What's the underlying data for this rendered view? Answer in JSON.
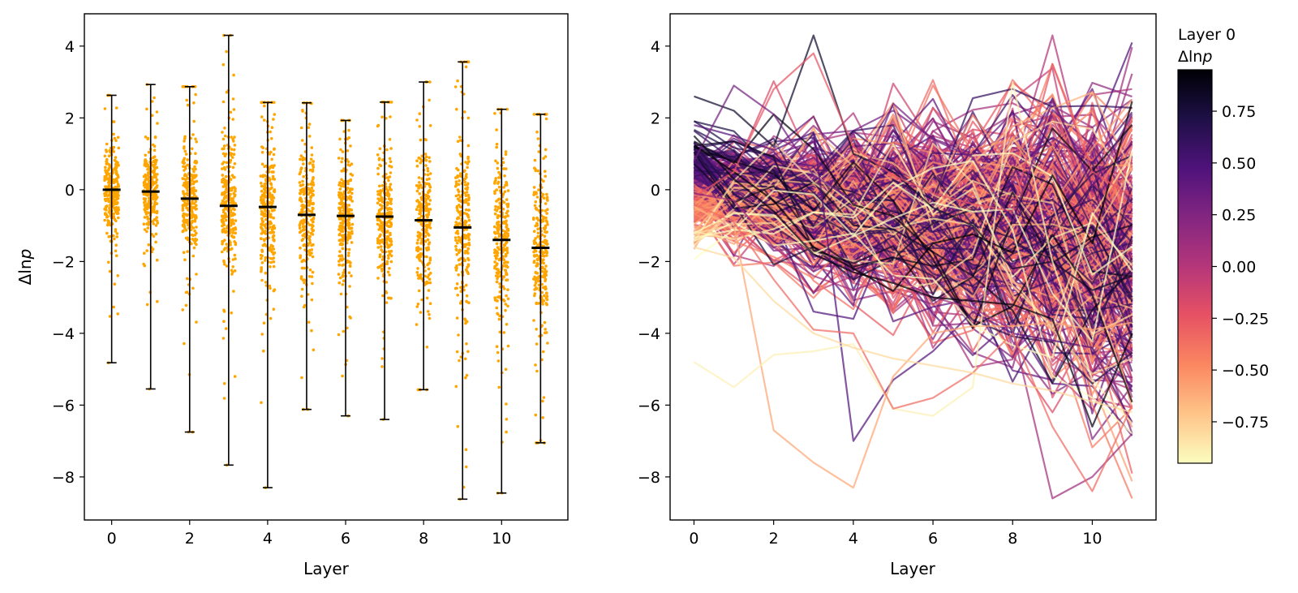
{
  "chart_data": [
    {
      "type": "scatter",
      "panel": "left",
      "description_kind": "jittered strip plot with mean markers and min-max error bars",
      "xlabel": "Layer",
      "ylabel": "Δln",
      "ylabel_italic_suffix": "p",
      "xticks": [
        0,
        2,
        4,
        6,
        8,
        10
      ],
      "yticks": [
        4,
        2,
        0,
        -2,
        -4,
        -6,
        -8
      ],
      "xlim": [
        -0.7,
        11.7
      ],
      "ylim": [
        -9.2,
        4.9
      ],
      "grid": false,
      "point_color": "#ffa500",
      "bar_color": "#000000",
      "layers": [
        0,
        1,
        2,
        3,
        4,
        5,
        6,
        7,
        8,
        9,
        10,
        11
      ],
      "means": [
        0.0,
        -0.05,
        -0.25,
        -0.45,
        -0.48,
        -0.7,
        -0.73,
        -0.75,
        -0.85,
        -1.05,
        -1.4,
        -1.62
      ],
      "max": [
        2.63,
        2.93,
        2.87,
        4.3,
        2.43,
        2.42,
        1.93,
        2.44,
        3.0,
        3.56,
        2.24,
        2.1
      ],
      "min": [
        -4.82,
        -5.55,
        -6.75,
        -7.67,
        -8.3,
        -6.12,
        -6.3,
        -6.4,
        -5.57,
        -8.62,
        -8.45,
        -7.05
      ],
      "core_spread": [
        1.2,
        1.1,
        1.8,
        2.0,
        2.0,
        1.9,
        1.9,
        1.9,
        2.0,
        2.3,
        2.4,
        2.5
      ]
    },
    {
      "type": "line",
      "panel": "right",
      "description_kind": "per-example trajectories across layers colored by layer-0 value",
      "xlabel": "Layer",
      "xticks": [
        0,
        2,
        4,
        6,
        8,
        10
      ],
      "yticks": [
        4,
        2,
        0,
        -2,
        -4,
        -6,
        -8
      ],
      "xlim": [
        -0.6,
        11.6
      ],
      "ylim": [
        -9.2,
        4.9
      ],
      "grid": false,
      "colormap": "magma_r",
      "colorbar": {
        "title_line1": "Layer 0",
        "title_line2": "Δln",
        "title_italic_suffix": "p",
        "range": [
          -0.95,
          0.95
        ],
        "ticks": [
          0.75,
          0.5,
          0.25,
          0.0,
          -0.25,
          -0.5,
          -0.75
        ],
        "tick_labels": [
          "0.75",
          "0.50",
          "0.25",
          "0.00",
          "−0.25",
          "−0.50",
          "−0.75"
        ]
      },
      "highlighted_series": [
        {
          "color_value": 0.8,
          "values": [
            2.6,
            2.2,
            1.2,
            4.3,
            1.0,
            0.5,
            -0.5,
            -1.0,
            -2.2,
            -2.0,
            -2.8,
            -2.4
          ]
        },
        {
          "color_value": 0.45,
          "values": [
            1.8,
            1.5,
            1.1,
            1.6,
            -7.0,
            -5.3,
            -4.5,
            -3.4,
            -4.0,
            -4.2,
            -4.4,
            -6.5
          ]
        },
        {
          "color_value": -0.6,
          "values": [
            -0.5,
            -1.0,
            -6.7,
            -7.6,
            -8.3,
            -5.2,
            -4.0,
            -3.8,
            -3.8,
            -3.7,
            -3.9,
            -3.7
          ]
        },
        {
          "color_value": -0.25,
          "values": [
            -0.2,
            0.5,
            2.8,
            3.8,
            1.2,
            0.4,
            -0.1,
            -0.4,
            -0.6,
            3.5,
            0.5,
            -0.2
          ]
        },
        {
          "color_value": -0.9,
          "values": [
            -4.8,
            -5.5,
            -4.6,
            -4.5,
            -4.3,
            -6.1,
            -6.3,
            -5.5,
            3.0,
            -2.0,
            -5.3,
            -6.5
          ]
        },
        {
          "color_value": 0.1,
          "values": [
            -0.1,
            -0.3,
            -1.6,
            -2.4,
            -2.8,
            -2.4,
            -3.0,
            -3.3,
            -3.9,
            -8.6,
            -8.0,
            -6.8
          ]
        },
        {
          "color_value": -0.35,
          "values": [
            -0.4,
            -0.9,
            -2.5,
            -3.9,
            -4.0,
            -6.1,
            -5.8,
            -5.1,
            -4.0,
            -6.6,
            -8.4,
            -6.0
          ]
        },
        {
          "color_value": 0.3,
          "values": [
            0.8,
            2.9,
            2.1,
            0.4,
            -0.3,
            2.4,
            1.4,
            0.9,
            -0.9,
            2.5,
            0.1,
            2.1
          ]
        },
        {
          "color_value": 0.9,
          "values": [
            1.5,
            0.3,
            -0.6,
            -1.8,
            -2.3,
            -2.6,
            -3.0,
            -3.1,
            -3.2,
            -3.6,
            -6.6,
            -4.0
          ]
        },
        {
          "color_value": -0.8,
          "values": [
            -1.6,
            -1.9,
            -3.1,
            -4.0,
            -4.4,
            -4.7,
            -4.9,
            -5.1,
            -5.4,
            -5.6,
            -5.9,
            -6.2
          ]
        }
      ],
      "bulk_series_count": 360
    }
  ]
}
